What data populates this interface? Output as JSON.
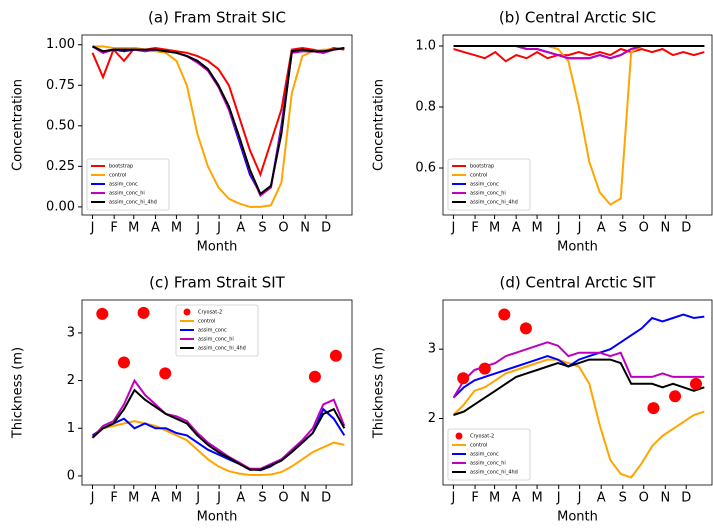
{
  "chart_data": [
    {
      "type": "line",
      "title": "(a) Fram Strait SIC",
      "xlabel": "Month",
      "ylabel": "Concentration",
      "x": [
        1,
        16,
        31,
        46,
        61,
        76,
        91,
        106,
        121,
        136,
        151,
        166,
        181,
        196,
        211,
        226,
        241,
        256,
        271,
        286,
        301,
        316,
        331,
        346,
        361
      ],
      "xlim": [
        -14,
        372
      ],
      "xticks": [
        {
          "value": 1,
          "label": "J"
        },
        {
          "value": 32,
          "label": "F"
        },
        {
          "value": 60,
          "label": "M"
        },
        {
          "value": 91,
          "label": "A"
        },
        {
          "value": 121,
          "label": "M"
        },
        {
          "value": 152,
          "label": "J"
        },
        {
          "value": 182,
          "label": "J"
        },
        {
          "value": 213,
          "label": "A"
        },
        {
          "value": 244,
          "label": "S"
        },
        {
          "value": 274,
          "label": "O"
        },
        {
          "value": 305,
          "label": "N"
        },
        {
          "value": 335,
          "label": "D"
        }
      ],
      "ylim": [
        -0.05,
        1.06
      ],
      "yticks": [
        {
          "value": 0,
          "label": "0.00"
        },
        0.25,
        {
          "value": 0.5,
          "label": "0.50"
        },
        0.75,
        {
          "value": 1,
          "label": "1.00"
        }
      ],
      "legend": "lower left",
      "series": [
        {
          "name": "bootstrap",
          "color": "#ff0000",
          "values": [
            0.95,
            0.8,
            0.97,
            0.9,
            0.98,
            0.97,
            0.98,
            0.97,
            0.96,
            0.95,
            0.93,
            0.9,
            0.85,
            0.75,
            0.55,
            0.35,
            0.2,
            0.4,
            0.6,
            0.97,
            0.98,
            0.97,
            0.96,
            0.98,
            0.97
          ]
        },
        {
          "name": "control",
          "color": "#ffa500",
          "values": [
            0.99,
            0.99,
            0.98,
            0.98,
            0.98,
            0.97,
            0.96,
            0.95,
            0.9,
            0.75,
            0.45,
            0.25,
            0.12,
            0.05,
            0.02,
            0.0,
            0.0,
            0.01,
            0.15,
            0.7,
            0.93,
            0.96,
            0.97,
            0.97,
            0.98
          ]
        },
        {
          "name": "assim_conc",
          "color": "#0000ff",
          "values": [
            0.99,
            0.95,
            0.97,
            0.96,
            0.97,
            0.96,
            0.97,
            0.96,
            0.95,
            0.93,
            0.9,
            0.85,
            0.75,
            0.6,
            0.4,
            0.2,
            0.08,
            0.12,
            0.5,
            0.95,
            0.96,
            0.96,
            0.95,
            0.97,
            0.98
          ]
        },
        {
          "name": "assim_conc_hi",
          "color": "#bf00bf",
          "values": [
            0.99,
            0.95,
            0.97,
            0.97,
            0.97,
            0.96,
            0.97,
            0.96,
            0.95,
            0.93,
            0.89,
            0.84,
            0.74,
            0.6,
            0.42,
            0.22,
            0.07,
            0.12,
            0.48,
            0.95,
            0.96,
            0.96,
            0.95,
            0.97,
            0.98
          ]
        },
        {
          "name": "assim_conc_hi_4hd",
          "color": "#000000",
          "values": [
            0.99,
            0.96,
            0.97,
            0.97,
            0.97,
            0.97,
            0.97,
            0.96,
            0.95,
            0.93,
            0.9,
            0.85,
            0.75,
            0.62,
            0.43,
            0.23,
            0.08,
            0.13,
            0.45,
            0.96,
            0.97,
            0.96,
            0.96,
            0.97,
            0.98
          ]
        }
      ]
    },
    {
      "type": "line",
      "title": "(b) Central Arctic SIC",
      "xlabel": "Month",
      "ylabel": "Concentration",
      "x": [
        1,
        16,
        31,
        46,
        61,
        76,
        91,
        106,
        121,
        136,
        151,
        166,
        181,
        196,
        211,
        226,
        241,
        256,
        271,
        286,
        301,
        316,
        331,
        346,
        361
      ],
      "xlim": [
        -14,
        372
      ],
      "xticks": [
        {
          "value": 1,
          "label": "J"
        },
        {
          "value": 32,
          "label": "F"
        },
        {
          "value": 60,
          "label": "M"
        },
        {
          "value": 91,
          "label": "A"
        },
        {
          "value": 121,
          "label": "M"
        },
        {
          "value": 152,
          "label": "J"
        },
        {
          "value": 182,
          "label": "J"
        },
        {
          "value": 213,
          "label": "A"
        },
        {
          "value": 244,
          "label": "S"
        },
        {
          "value": 274,
          "label": "O"
        },
        {
          "value": 305,
          "label": "N"
        },
        {
          "value": 335,
          "label": "D"
        }
      ],
      "ylim": [
        0.446,
        1.036
      ],
      "yticks": [
        0.6,
        0.8,
        {
          "value": 1,
          "label": "1.0"
        }
      ],
      "legend": "lower left",
      "series": [
        {
          "name": "bootstrap",
          "color": "#ff0000",
          "values": [
            0.99,
            0.98,
            0.97,
            0.96,
            0.98,
            0.95,
            0.97,
            0.96,
            0.98,
            0.96,
            0.97,
            0.97,
            0.98,
            0.97,
            0.98,
            0.97,
            0.99,
            0.98,
            0.99,
            0.98,
            0.99,
            0.97,
            0.98,
            0.97,
            0.98
          ]
        },
        {
          "name": "control",
          "color": "#ffa500",
          "values": [
            1,
            1,
            1,
            1,
            1,
            1,
            1,
            1,
            1,
            1,
            0.99,
            0.95,
            0.8,
            0.62,
            0.52,
            0.48,
            0.5,
            0.98,
            1,
            1,
            1,
            1,
            1,
            1,
            1
          ]
        },
        {
          "name": "assim_conc",
          "color": "#0000ff",
          "values": [
            1,
            1,
            1,
            1,
            1,
            1,
            1,
            0.99,
            0.99,
            0.98,
            0.97,
            0.96,
            0.96,
            0.96,
            0.97,
            0.96,
            0.97,
            0.99,
            1,
            1,
            1,
            1,
            1,
            1,
            1
          ]
        },
        {
          "name": "assim_conc_hi",
          "color": "#bf00bf",
          "values": [
            1,
            1,
            1,
            1,
            1,
            1,
            1,
            0.99,
            0.99,
            0.98,
            0.97,
            0.96,
            0.96,
            0.96,
            0.97,
            0.96,
            0.97,
            0.99,
            1,
            1,
            1,
            1,
            1,
            1,
            1
          ]
        },
        {
          "name": "assim_conc_hi_4hd",
          "color": "#000000",
          "values": [
            1,
            1,
            1,
            1,
            1,
            1,
            1,
            1,
            1,
            1,
            1,
            1,
            1,
            1,
            1,
            1,
            1,
            1,
            1,
            1,
            1,
            1,
            1,
            1,
            1
          ]
        }
      ]
    },
    {
      "type": "line",
      "title": "(c) Fram Strait SIT",
      "xlabel": "Month",
      "ylabel": "Thickness (m)",
      "x": [
        1,
        16,
        31,
        46,
        61,
        76,
        91,
        106,
        121,
        136,
        151,
        166,
        181,
        196,
        211,
        226,
        241,
        256,
        271,
        286,
        301,
        316,
        331,
        346,
        361
      ],
      "xlim": [
        -14,
        372
      ],
      "xticks": [
        {
          "value": 1,
          "label": "J"
        },
        {
          "value": 32,
          "label": "F"
        },
        {
          "value": 60,
          "label": "M"
        },
        {
          "value": 91,
          "label": "A"
        },
        {
          "value": 121,
          "label": "M"
        },
        {
          "value": 152,
          "label": "J"
        },
        {
          "value": 182,
          "label": "J"
        },
        {
          "value": 213,
          "label": "A"
        },
        {
          "value": 244,
          "label": "S"
        },
        {
          "value": 274,
          "label": "O"
        },
        {
          "value": 305,
          "label": "N"
        },
        {
          "value": 335,
          "label": "D"
        }
      ],
      "ylim": [
        -0.19,
        3.69
      ],
      "yticks": [
        0,
        1,
        2,
        3
      ],
      "legend": "upper center",
      "series": [
        {
          "name": "Cryosat-2",
          "type": "scatter",
          "color": "#ff0000",
          "x": [
            15,
            46,
            74,
            105,
            319,
            349
          ],
          "values": [
            3.4,
            2.38,
            3.42,
            2.15,
            2.08,
            2.52
          ]
        },
        {
          "name": "control",
          "color": "#ffa500",
          "values": [
            0.85,
            1.0,
            1.05,
            1.1,
            1.15,
            1.1,
            1.05,
            0.95,
            0.85,
            0.75,
            0.55,
            0.35,
            0.2,
            0.1,
            0.05,
            0.02,
            0.02,
            0.03,
            0.08,
            0.2,
            0.35,
            0.5,
            0.6,
            0.7,
            0.65
          ]
        },
        {
          "name": "assim_conc",
          "color": "#0000ff",
          "values": [
            0.85,
            1.0,
            1.1,
            1.2,
            1.0,
            1.1,
            1.0,
            1.0,
            0.9,
            0.85,
            0.7,
            0.55,
            0.45,
            0.35,
            0.25,
            0.15,
            0.12,
            0.2,
            0.35,
            0.5,
            0.7,
            0.9,
            1.4,
            1.2,
            0.85
          ]
        },
        {
          "name": "assim_conc_hi",
          "color": "#bf00bf",
          "values": [
            0.8,
            1.05,
            1.15,
            1.5,
            2.0,
            1.7,
            1.5,
            1.3,
            1.25,
            1.15,
            0.9,
            0.7,
            0.55,
            0.4,
            0.28,
            0.15,
            0.15,
            0.25,
            0.35,
            0.55,
            0.75,
            1.0,
            1.5,
            1.6,
            1.05
          ]
        },
        {
          "name": "assim_conc_hi_4hd",
          "color": "#000000",
          "values": [
            0.8,
            1.0,
            1.1,
            1.4,
            1.8,
            1.6,
            1.45,
            1.3,
            1.2,
            1.1,
            0.85,
            0.65,
            0.5,
            0.38,
            0.25,
            0.13,
            0.13,
            0.22,
            0.32,
            0.5,
            0.7,
            0.9,
            1.3,
            1.4,
            1.0
          ]
        }
      ]
    },
    {
      "type": "line",
      "title": "(d) Central Arctic SIT",
      "xlabel": "Month",
      "ylabel": "Thickness (m)",
      "x": [
        1,
        16,
        31,
        46,
        61,
        76,
        91,
        106,
        121,
        136,
        151,
        166,
        181,
        196,
        211,
        226,
        241,
        256,
        271,
        286,
        301,
        316,
        331,
        346,
        361
      ],
      "xlim": [
        -14,
        372
      ],
      "xticks": [
        {
          "value": 1,
          "label": "J"
        },
        {
          "value": 32,
          "label": "F"
        },
        {
          "value": 60,
          "label": "M"
        },
        {
          "value": 91,
          "label": "A"
        },
        {
          "value": 121,
          "label": "M"
        },
        {
          "value": 152,
          "label": "J"
        },
        {
          "value": 182,
          "label": "J"
        },
        {
          "value": 213,
          "label": "A"
        },
        {
          "value": 244,
          "label": "S"
        },
        {
          "value": 274,
          "label": "O"
        },
        {
          "value": 305,
          "label": "N"
        },
        {
          "value": 335,
          "label": "D"
        }
      ],
      "ylim": [
        1.04,
        3.71
      ],
      "yticks": [
        2,
        3
      ],
      "legend": "lower left",
      "series": [
        {
          "name": "Cryosat-2",
          "type": "scatter",
          "color": "#ff0000",
          "x": [
            15,
            46,
            74,
            105,
            288,
            319,
            349
          ],
          "values": [
            2.58,
            2.72,
            3.5,
            3.3,
            2.15,
            2.32,
            2.5
          ]
        },
        {
          "name": "control",
          "color": "#ffa500",
          "values": [
            2.05,
            2.2,
            2.4,
            2.45,
            2.55,
            2.65,
            2.7,
            2.75,
            2.8,
            2.85,
            2.85,
            2.8,
            2.75,
            2.5,
            1.9,
            1.4,
            1.2,
            1.15,
            1.35,
            1.6,
            1.75,
            1.85,
            1.95,
            2.05,
            2.1
          ]
        },
        {
          "name": "assim_conc",
          "color": "#0000ff",
          "values": [
            2.3,
            2.45,
            2.55,
            2.6,
            2.65,
            2.7,
            2.75,
            2.8,
            2.85,
            2.9,
            2.85,
            2.75,
            2.85,
            2.9,
            2.95,
            3.0,
            3.1,
            3.2,
            3.3,
            3.45,
            3.4,
            3.45,
            3.5,
            3.45,
            3.47
          ]
        },
        {
          "name": "assim_conc_hi",
          "color": "#bf00bf",
          "values": [
            2.3,
            2.55,
            2.7,
            2.75,
            2.8,
            2.9,
            2.95,
            3.0,
            3.05,
            3.1,
            3.05,
            2.9,
            2.95,
            2.95,
            2.95,
            2.9,
            2.95,
            2.6,
            2.6,
            2.6,
            2.65,
            2.6,
            2.6,
            2.6,
            2.6
          ]
        },
        {
          "name": "assim_conc_hi_4hd",
          "color": "#000000",
          "values": [
            2.05,
            2.1,
            2.2,
            2.3,
            2.4,
            2.5,
            2.6,
            2.65,
            2.7,
            2.75,
            2.8,
            2.75,
            2.8,
            2.85,
            2.85,
            2.85,
            2.8,
            2.5,
            2.5,
            2.5,
            2.45,
            2.5,
            2.45,
            2.4,
            2.45
          ]
        }
      ]
    }
  ]
}
